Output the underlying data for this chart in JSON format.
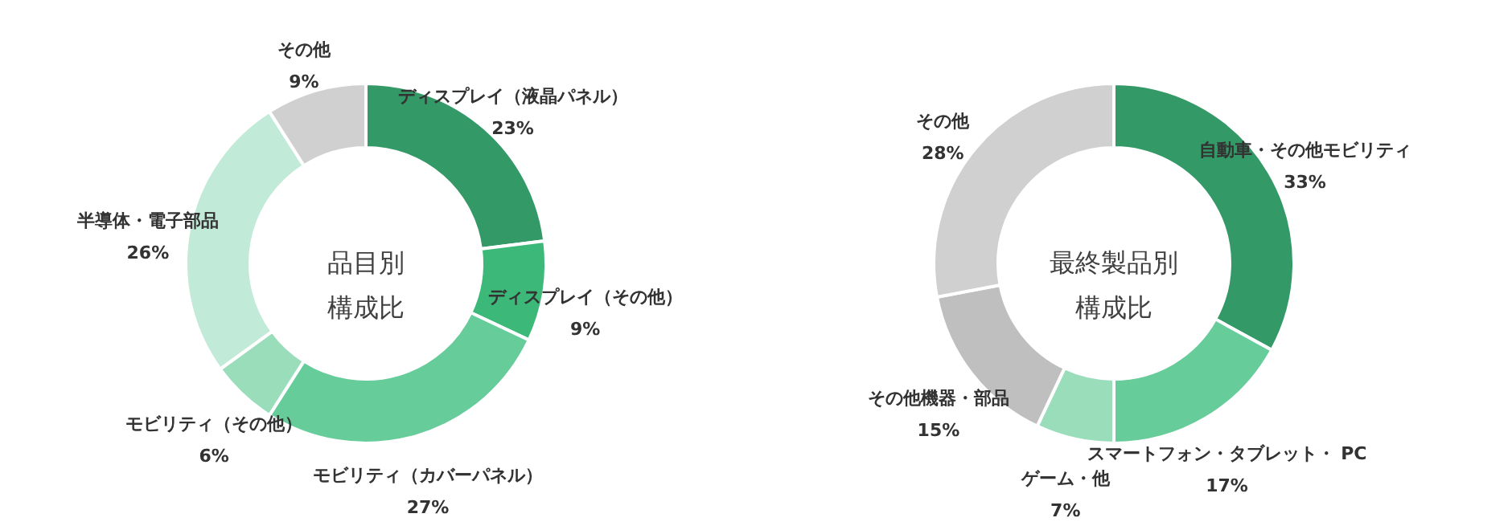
{
  "chart_data": [
    {
      "type": "donut",
      "title": "品目別構成比",
      "categories": [
        "ディスプレイ（液晶パネル）",
        "ディスプレイ（その他）",
        "モビリティ（カバーパネル）",
        "モビリティ（その他）",
        "半導体・電子部品",
        "その他"
      ],
      "values": [
        23,
        9,
        27,
        6,
        26,
        9
      ],
      "value_labels": [
        "23%",
        "9%",
        "27%",
        "6%",
        "26%",
        "9%"
      ],
      "colors": [
        "#339966",
        "#3cb878",
        "#66cc99",
        "#99ddbb",
        "#c2ead8",
        "#d0d0d0"
      ],
      "legend": false
    },
    {
      "type": "donut",
      "title": "最終製品別構成比",
      "categories": [
        "自動車・その他モビリティ",
        "スマートフォン・タブレット・ PC",
        "ゲーム・他",
        "その他機器・部品",
        "その他"
      ],
      "values": [
        33,
        17,
        7,
        15,
        28
      ],
      "value_labels": [
        "33%",
        "17%",
        "7%",
        "15%",
        "28%"
      ],
      "colors": [
        "#339966",
        "#66cc99",
        "#99ddbb",
        "#bfbfbf",
        "#d0d0d0"
      ],
      "legend": false
    }
  ]
}
